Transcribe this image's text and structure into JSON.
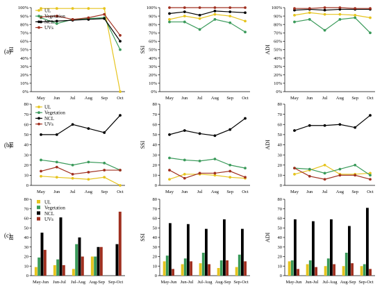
{
  "colors": {
    "UL": "#e6c41e",
    "Vegetation": "#3a9a5a",
    "NCL": "#000000",
    "UVs": "#a03020"
  },
  "row_labels": [
    "(a)",
    "(b)",
    "(c)"
  ],
  "chart_data": [
    {
      "id": "a-bi",
      "type": "line",
      "ylabel": "BI",
      "ylim": [
        0,
        100
      ],
      "yticks": [
        0,
        10,
        20,
        30,
        40,
        50,
        60,
        70,
        80,
        90,
        100
      ],
      "ytick_suffix": "%",
      "categories": [
        "May",
        "Jun",
        "Jul",
        "Aug",
        "Sep",
        "Oct"
      ],
      "legend": [
        "UL",
        "Vegetation",
        "NCL",
        "UVs"
      ],
      "series": [
        {
          "name": "UL",
          "values": [
            99,
            99,
            99,
            99,
            99,
            0
          ]
        },
        {
          "name": "Vegetation",
          "values": [
            88,
            81,
            86,
            87,
            88,
            50
          ]
        },
        {
          "name": "NCL",
          "values": [
            83,
            84,
            85,
            86,
            87,
            60
          ]
        },
        {
          "name": "UVs",
          "values": [
            89,
            90,
            86,
            88,
            92,
            67
          ]
        }
      ]
    },
    {
      "id": "a-ssi",
      "type": "line",
      "ylabel": "SSI",
      "ylim": [
        0,
        100
      ],
      "yticks": [
        0,
        10,
        20,
        30,
        40,
        50,
        60,
        70,
        80,
        90,
        100
      ],
      "ytick_suffix": "%",
      "categories": [
        "May",
        "Jun",
        "Jul",
        "Aug",
        "Sep",
        "Oct"
      ],
      "series": [
        {
          "name": "UL",
          "values": [
            86,
            90,
            87,
            92,
            90,
            84
          ]
        },
        {
          "name": "Vegetation",
          "values": [
            83,
            83,
            74,
            86,
            82,
            71
          ]
        },
        {
          "name": "NCL",
          "values": [
            93,
            95,
            91,
            96,
            95,
            94
          ]
        },
        {
          "name": "UVs",
          "values": [
            100,
            100,
            100,
            100,
            100,
            100
          ]
        }
      ]
    },
    {
      "id": "a-adi",
      "type": "line",
      "ylabel": "ADI",
      "ylim": [
        0,
        100
      ],
      "yticks": [
        0,
        10,
        20,
        30,
        40,
        50,
        60,
        70,
        80,
        90,
        100
      ],
      "ytick_suffix": "%",
      "categories": [
        "May",
        "Jun",
        "Jul",
        "Aug",
        "Sep",
        "Oct"
      ],
      "series": [
        {
          "name": "UL",
          "values": [
            91,
            94,
            92,
            92,
            91,
            88
          ]
        },
        {
          "name": "Vegetation",
          "values": [
            83,
            86,
            73,
            86,
            88,
            70
          ]
        },
        {
          "name": "NCL",
          "values": [
            97,
            98,
            97,
            98,
            98,
            98
          ]
        },
        {
          "name": "UVs",
          "values": [
            99,
            99,
            100,
            100,
            99,
            99
          ]
        }
      ]
    },
    {
      "id": "b-bi",
      "type": "line",
      "ylabel": "BI",
      "ylim": [
        0,
        80
      ],
      "yticks": [
        0,
        10,
        20,
        30,
        40,
        50,
        60,
        70,
        80
      ],
      "ytick_suffix": "",
      "categories": [
        "May",
        "Jun",
        "Jul",
        "Aug",
        "Sep",
        "Oct"
      ],
      "legend": [
        "UL",
        "Vegetation",
        "NCL",
        "UVs"
      ],
      "series": [
        {
          "name": "UL",
          "values": [
            9,
            8,
            7,
            6,
            8,
            0
          ]
        },
        {
          "name": "Vegetation",
          "values": [
            25,
            23,
            20,
            23,
            22,
            15
          ]
        },
        {
          "name": "NCL",
          "values": [
            50,
            50,
            60,
            56,
            52,
            69
          ]
        },
        {
          "name": "UVs",
          "values": [
            14,
            18,
            11,
            13,
            15,
            15
          ]
        }
      ]
    },
    {
      "id": "b-ssi",
      "type": "line",
      "ylabel": "SSI",
      "ylim": [
        0,
        80
      ],
      "yticks": [
        0,
        10,
        20,
        30,
        40,
        50,
        60,
        70,
        80
      ],
      "ytick_suffix": "",
      "categories": [
        "May",
        "Jun",
        "Jul",
        "Aug",
        "Sep",
        "Oct"
      ],
      "series": [
        {
          "name": "UL",
          "values": [
            6,
            11,
            11,
            10,
            8,
            7
          ]
        },
        {
          "name": "Vegetation",
          "values": [
            27,
            25,
            24,
            26,
            20,
            17
          ]
        },
        {
          "name": "NCL",
          "values": [
            50,
            54,
            51,
            49,
            55,
            66
          ]
        },
        {
          "name": "UVs",
          "values": [
            15,
            7,
            12,
            12,
            14,
            8
          ]
        }
      ]
    },
    {
      "id": "b-adi",
      "type": "line",
      "ylabel": "ADI",
      "ylim": [
        0,
        80
      ],
      "yticks": [
        0,
        10,
        20,
        30,
        40,
        50,
        60,
        70,
        80
      ],
      "ytick_suffix": "",
      "categories": [
        "May",
        "Jun",
        "Jul",
        "Aug",
        "Sep",
        "Oct"
      ],
      "series": [
        {
          "name": "UL",
          "values": [
            11,
            15,
            20,
            11,
            11,
            12
          ]
        },
        {
          "name": "Vegetation",
          "values": [
            17,
            16,
            12,
            16,
            20,
            10
          ]
        },
        {
          "name": "NCL",
          "values": [
            54,
            59,
            59,
            60,
            57,
            69
          ]
        },
        {
          "name": "UVs",
          "values": [
            17,
            9,
            6,
            10,
            10,
            6
          ]
        }
      ]
    },
    {
      "id": "c-bi",
      "type": "bar",
      "ylabel": "BI",
      "ylim": [
        0,
        80
      ],
      "yticks": [
        0,
        10,
        20,
        30,
        40,
        50,
        60,
        70,
        80
      ],
      "ytick_suffix": "",
      "categories": [
        "May-Jun",
        "Jun-Jul",
        "Jul-Aug",
        "Aug-Sep",
        "Sep-Oct"
      ],
      "legend": [
        "UL",
        "Vegetation",
        "NCL",
        "UVs"
      ],
      "series": [
        {
          "name": "UL",
          "values": [
            9,
            11,
            7,
            20,
            0
          ]
        },
        {
          "name": "Vegetation",
          "values": [
            19,
            17,
            33,
            20,
            0
          ]
        },
        {
          "name": "NCL",
          "values": [
            45,
            61,
            40,
            30,
            33
          ]
        },
        {
          "name": "UVs",
          "values": [
            27,
            11,
            20,
            30,
            67
          ]
        }
      ]
    },
    {
      "id": "c-ssi",
      "type": "bar",
      "ylabel": "SSI",
      "ylim": [
        0,
        80
      ],
      "yticks": [
        0,
        10,
        20,
        30,
        40,
        50,
        60,
        70,
        80
      ],
      "ytick_suffix": "",
      "categories": [
        "May-Jun",
        "Jun-Jul",
        "Jul-Aug",
        "Aug-Sep",
        "Sep-Oct"
      ],
      "series": [
        {
          "name": "UL",
          "values": [
            15,
            12,
            13,
            8,
            9
          ]
        },
        {
          "name": "Vegetation",
          "values": [
            21,
            18,
            24,
            16,
            22
          ]
        },
        {
          "name": "NCL",
          "values": [
            55,
            54,
            49,
            59,
            49
          ]
        },
        {
          "name": "UVs",
          "values": [
            7,
            15,
            12,
            16,
            15
          ]
        }
      ]
    },
    {
      "id": "c-adi",
      "type": "bar",
      "ylabel": "ADI",
      "ylim": [
        0,
        80
      ],
      "yticks": [
        0,
        10,
        20,
        30,
        40,
        50,
        60,
        70,
        80
      ],
      "ytick_suffix": "",
      "categories": [
        "May-Jun",
        "Jun-Jul",
        "Jul-Aug",
        "Aug-Sep",
        "Sep-Oct"
      ],
      "series": [
        {
          "name": "UL",
          "values": [
            15,
            12,
            10,
            10,
            10
          ]
        },
        {
          "name": "Vegetation",
          "values": [
            16,
            16,
            18,
            24,
            12
          ]
        },
        {
          "name": "NCL",
          "values": [
            59,
            57,
            59,
            52,
            71
          ]
        },
        {
          "name": "UVs",
          "values": [
            7,
            9,
            12,
            13,
            7
          ]
        }
      ]
    }
  ]
}
